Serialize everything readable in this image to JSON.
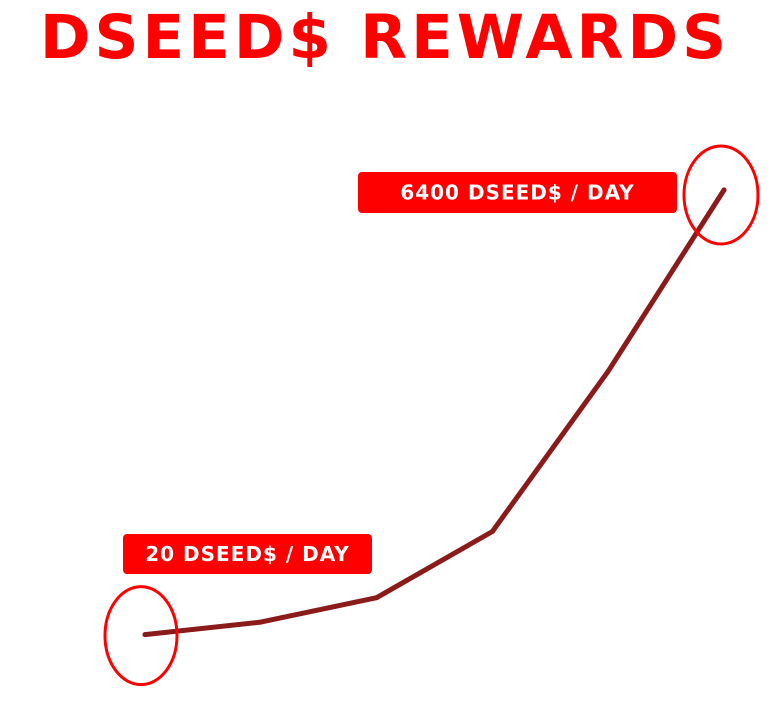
{
  "title": "DSEED$ REWARDS",
  "colors": {
    "title": "#ff0000",
    "line": "#8b1a1a",
    "highlight": "#ff0000",
    "callout_bg": "#ff0000",
    "callout_text": "#ffffff"
  },
  "chart_data": {
    "type": "line",
    "title": "DSEED$ REWARDS",
    "xlabel": "",
    "ylabel": "",
    "grid": false,
    "x": [
      1,
      2,
      3,
      4,
      5,
      6
    ],
    "series": [
      {
        "values": [
          20,
          200,
          550,
          1500,
          3800,
          6400
        ]
      }
    ],
    "ylim": [
      0,
      6400
    ],
    "annotations": [
      {
        "point_index": 0,
        "label": "20 DSEED$ / DAY"
      },
      {
        "point_index": 5,
        "label": "6400 DSEED$ / DAY"
      }
    ]
  }
}
